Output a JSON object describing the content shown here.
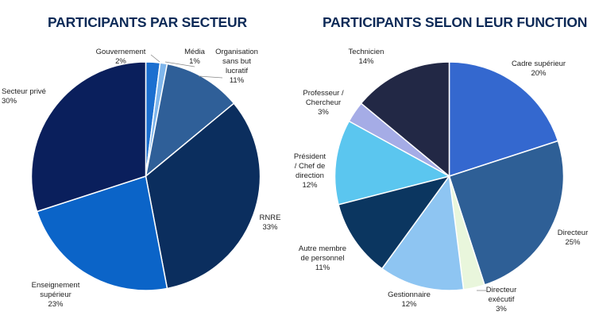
{
  "chart_data": [
    {
      "type": "pie",
      "title": "PARTICIPANTS PAR SECTEUR",
      "slices": [
        {
          "label": "Gouvernement",
          "value": 2,
          "display": "2%",
          "color": "#1b6fd0"
        },
        {
          "label": "Média",
          "value": 1,
          "display": "1%",
          "color": "#7fb6ec"
        },
        {
          "label": "Organisation sans but lucratif",
          "value": 11,
          "display": "11%",
          "color": "#2f5f98"
        },
        {
          "label": "RNRE",
          "value": 33,
          "display": "33%",
          "color": "#0b2e5e"
        },
        {
          "label": "Enseignement supérieur",
          "value": 23,
          "display": "23%",
          "color": "#0b64c8"
        },
        {
          "label": "Secteur privé",
          "value": 30,
          "display": "30%",
          "color": "#0a1f5c"
        }
      ]
    },
    {
      "type": "pie",
      "title": "PARTICIPANTS SELON LEUR FUNCTION",
      "slices": [
        {
          "label": "Cadre supérieur",
          "value": 20,
          "display": "20%",
          "color": "#3468cf"
        },
        {
          "label": "Directeur",
          "value": 25,
          "display": "25%",
          "color": "#2e5f96"
        },
        {
          "label": "Directeur exécutif",
          "value": 3,
          "display": "3%",
          "color": "#e9f6dc"
        },
        {
          "label": "Gestionnaire",
          "value": 12,
          "display": "12%",
          "color": "#8ec5f2"
        },
        {
          "label": "Autre membre de personnel",
          "value": 11,
          "display": "11%",
          "color": "#0b3660"
        },
        {
          "label": "Président / Chef de direction",
          "value": 12,
          "display": "12%",
          "color": "#5bc6ef"
        },
        {
          "label": "Professeur / Chercheur",
          "value": 3,
          "display": "3%",
          "color": "#a5ace6"
        },
        {
          "label": "Technicien",
          "value": 14,
          "display": "14%",
          "color": "#222845"
        }
      ]
    }
  ]
}
